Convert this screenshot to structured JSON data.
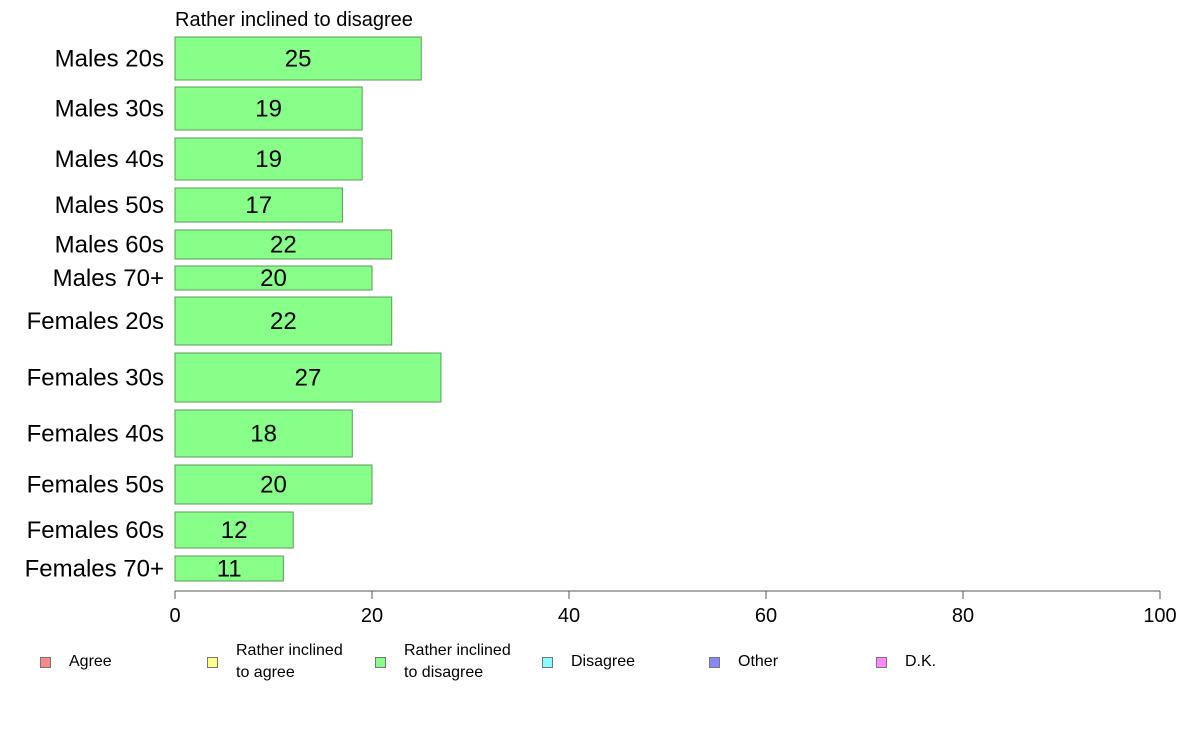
{
  "chart_data": {
    "type": "bar",
    "orientation": "horizontal",
    "title": "Rather inclined to disagree",
    "categories": [
      "Males 20s",
      "Males 30s",
      "Males 40s",
      "Males 50s",
      "Males 60s",
      "Males 70+",
      "Females 20s",
      "Females 30s",
      "Females 40s",
      "Females 50s",
      "Females 60s",
      "Females 70+"
    ],
    "values": [
      25,
      19,
      19,
      17,
      22,
      20,
      22,
      27,
      18,
      20,
      12,
      11
    ],
    "xlim": [
      0,
      100
    ],
    "xticks": [
      "0",
      "20",
      "40",
      "60",
      "80",
      "100"
    ],
    "grid": false,
    "bar_color": "#88ff88",
    "bar_border": "#5a9a5a",
    "legend_position": "bottom",
    "legend": [
      {
        "label": "Agree",
        "color": "#ff8888"
      },
      {
        "label": "Rather inclined\nto agree",
        "color": "#ffff88"
      },
      {
        "label": "Rather inclined\nto disagree",
        "color": "#88ff88"
      },
      {
        "label": "Disagree",
        "color": "#88ffff"
      },
      {
        "label": "Other",
        "color": "#8888ff"
      },
      {
        "label": "D.K.",
        "color": "#ff88ff"
      }
    ]
  }
}
